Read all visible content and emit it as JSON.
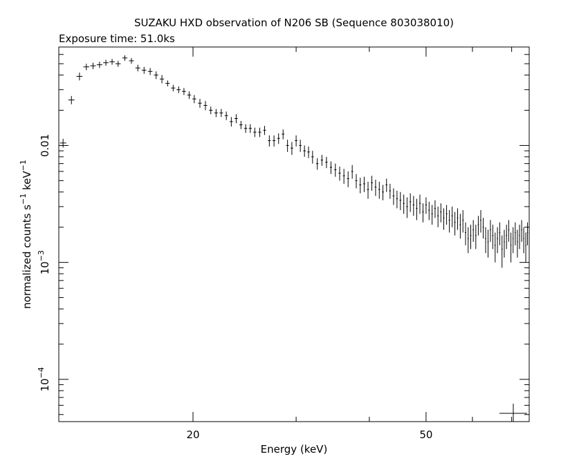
{
  "chart_data": {
    "type": "scatter",
    "title": "SUZAKU HXD observation of N206 SB (Sequence 803038010)",
    "subtitle": "Exposure time: 51.0ks",
    "xlabel": "Energy (keV)",
    "ylabel_main": "normalized counts s",
    "ylabel_exp1": "−1",
    "ylabel_mid": " keV",
    "ylabel_exp2": "−1",
    "x_scale": "log",
    "y_scale": "log",
    "xlim": [
      11.8,
      75.0
    ],
    "ylim": [
      4.35e-05,
      0.0695
    ],
    "x_ticks": [
      {
        "value": 20,
        "label": "20"
      },
      {
        "value": 50,
        "label": "50"
      }
    ],
    "y_ticks": [
      {
        "value": 0.01,
        "label": "0.01"
      },
      {
        "value": 0.001,
        "label": "10",
        "exp": "−3"
      },
      {
        "value": 0.0001,
        "label": "10",
        "exp": "−4"
      }
    ],
    "marker_color": "#000000",
    "grid": false,
    "series": [
      {
        "points": [
          [
            12.0,
            0.0105,
            0.15,
            0.0009
          ],
          [
            12.4,
            0.0245,
            0.15,
            0.002
          ],
          [
            12.8,
            0.039,
            0.15,
            0.003
          ],
          [
            13.15,
            0.047,
            0.15,
            0.003
          ],
          [
            13.5,
            0.048,
            0.15,
            0.003
          ],
          [
            13.85,
            0.049,
            0.15,
            0.003
          ],
          [
            14.2,
            0.051,
            0.15,
            0.003
          ],
          [
            14.55,
            0.052,
            0.15,
            0.003
          ],
          [
            14.9,
            0.05,
            0.15,
            0.003
          ],
          [
            15.3,
            0.056,
            0.15,
            0.003
          ],
          [
            15.7,
            0.053,
            0.15,
            0.003
          ],
          [
            16.1,
            0.046,
            0.15,
            0.003
          ],
          [
            16.5,
            0.044,
            0.15,
            0.003
          ],
          [
            16.9,
            0.043,
            0.15,
            0.003
          ],
          [
            17.3,
            0.04,
            0.15,
            0.003
          ],
          [
            17.7,
            0.037,
            0.15,
            0.003
          ],
          [
            18.1,
            0.034,
            0.15,
            0.002
          ],
          [
            18.5,
            0.031,
            0.15,
            0.002
          ],
          [
            18.9,
            0.03,
            0.15,
            0.002
          ],
          [
            19.3,
            0.029,
            0.15,
            0.002
          ],
          [
            19.7,
            0.027,
            0.15,
            0.002
          ],
          [
            20.1,
            0.025,
            0.15,
            0.002
          ],
          [
            20.55,
            0.023,
            0.15,
            0.002
          ],
          [
            21.0,
            0.022,
            0.15,
            0.002
          ],
          [
            21.45,
            0.02,
            0.15,
            0.0015
          ],
          [
            21.9,
            0.019,
            0.15,
            0.0015
          ],
          [
            22.35,
            0.019,
            0.15,
            0.0015
          ],
          [
            22.8,
            0.018,
            0.15,
            0.0015
          ],
          [
            23.25,
            0.016,
            0.15,
            0.0015
          ],
          [
            23.7,
            0.017,
            0.15,
            0.0015
          ],
          [
            24.15,
            0.015,
            0.15,
            0.0012
          ],
          [
            24.6,
            0.014,
            0.15,
            0.0012
          ],
          [
            25.05,
            0.014,
            0.15,
            0.0012
          ],
          [
            25.5,
            0.013,
            0.15,
            0.0012
          ],
          [
            26.0,
            0.013,
            0.15,
            0.0012
          ],
          [
            26.5,
            0.0135,
            0.15,
            0.0012
          ],
          [
            27.0,
            0.011,
            0.15,
            0.0012
          ],
          [
            27.5,
            0.011,
            0.15,
            0.0012
          ],
          [
            28.0,
            0.0115,
            0.15,
            0.0012
          ],
          [
            28.5,
            0.0125,
            0.15,
            0.0012
          ],
          [
            29.0,
            0.01,
            0.15,
            0.0012
          ],
          [
            29.5,
            0.0095,
            0.15,
            0.0012
          ],
          [
            30.0,
            0.011,
            0.15,
            0.0012
          ],
          [
            30.5,
            0.01,
            0.15,
            0.0012
          ],
          [
            31.0,
            0.009,
            0.15,
            0.001
          ],
          [
            31.5,
            0.0088,
            0.15,
            0.001
          ],
          [
            32.0,
            0.008,
            0.15,
            0.001
          ],
          [
            32.6,
            0.007,
            0.15,
            0.0008
          ],
          [
            33.2,
            0.0075,
            0.15,
            0.0008
          ],
          [
            33.8,
            0.0072,
            0.15,
            0.0008
          ],
          [
            34.4,
            0.0065,
            0.15,
            0.0008
          ],
          [
            35.0,
            0.0062,
            0.15,
            0.0008
          ],
          [
            35.6,
            0.0058,
            0.15,
            0.0008
          ],
          [
            36.2,
            0.0055,
            0.15,
            0.0008
          ],
          [
            36.8,
            0.0052,
            0.15,
            0.0008
          ],
          [
            37.4,
            0.006,
            0.15,
            0.0008
          ],
          [
            38.0,
            0.005,
            0.15,
            0.0007
          ],
          [
            38.6,
            0.0046,
            0.15,
            0.0007
          ],
          [
            39.2,
            0.0047,
            0.15,
            0.0007
          ],
          [
            39.8,
            0.0042,
            0.15,
            0.0007
          ],
          [
            40.4,
            0.0048,
            0.15,
            0.0007
          ],
          [
            41.0,
            0.0044,
            0.15,
            0.0007
          ],
          [
            41.6,
            0.0042,
            0.15,
            0.0007
          ],
          [
            42.2,
            0.004,
            0.15,
            0.0006
          ],
          [
            42.8,
            0.0046,
            0.15,
            0.0006
          ],
          [
            43.4,
            0.0041,
            0.15,
            0.0006
          ],
          [
            44.0,
            0.0037,
            0.15,
            0.0006
          ],
          [
            44.6,
            0.0035,
            0.15,
            0.0006
          ],
          [
            45.2,
            0.0034,
            0.15,
            0.0006
          ],
          [
            45.8,
            0.0032,
            0.15,
            0.0006
          ],
          [
            46.4,
            0.003,
            0.15,
            0.0006
          ],
          [
            47.0,
            0.0033,
            0.15,
            0.0006
          ],
          [
            47.6,
            0.0031,
            0.15,
            0.0006
          ],
          [
            48.2,
            0.0029,
            0.15,
            0.0006
          ],
          [
            48.8,
            0.0032,
            0.15,
            0.0006
          ],
          [
            49.4,
            0.0027,
            0.15,
            0.0005
          ],
          [
            50.0,
            0.0031,
            0.15,
            0.0005
          ],
          [
            50.6,
            0.0028,
            0.15,
            0.0005
          ],
          [
            51.2,
            0.0026,
            0.15,
            0.0005
          ],
          [
            51.8,
            0.0029,
            0.15,
            0.0005
          ],
          [
            52.4,
            0.0025,
            0.15,
            0.0005
          ],
          [
            53.0,
            0.0027,
            0.15,
            0.0005
          ],
          [
            53.6,
            0.0024,
            0.15,
            0.0005
          ],
          [
            54.2,
            0.0026,
            0.15,
            0.0005
          ],
          [
            54.8,
            0.0023,
            0.15,
            0.0005
          ],
          [
            55.4,
            0.0025,
            0.15,
            0.0005
          ],
          [
            56.0,
            0.0022,
            0.15,
            0.0005
          ],
          [
            56.6,
            0.0024,
            0.15,
            0.0005
          ],
          [
            57.2,
            0.0021,
            0.15,
            0.0005
          ],
          [
            57.8,
            0.0023,
            0.15,
            0.0005
          ],
          [
            58.4,
            0.0018,
            0.15,
            0.0004
          ],
          [
            59.0,
            0.0016,
            0.15,
            0.0004
          ],
          [
            59.6,
            0.0017,
            0.15,
            0.0004
          ],
          [
            60.2,
            0.0019,
            0.15,
            0.0004
          ],
          [
            60.8,
            0.0017,
            0.15,
            0.0004
          ],
          [
            61.4,
            0.0021,
            0.15,
            0.0004
          ],
          [
            62.0,
            0.0023,
            0.15,
            0.0005
          ],
          [
            62.6,
            0.002,
            0.15,
            0.0004
          ],
          [
            63.2,
            0.0016,
            0.15,
            0.0004
          ],
          [
            63.8,
            0.0015,
            0.15,
            0.0004
          ],
          [
            64.4,
            0.0019,
            0.15,
            0.0004
          ],
          [
            65.0,
            0.0017,
            0.15,
            0.0004
          ],
          [
            65.6,
            0.0014,
            0.15,
            0.0004
          ],
          [
            66.2,
            0.0016,
            0.15,
            0.0004
          ],
          [
            66.8,
            0.0018,
            0.15,
            0.0004
          ],
          [
            67.4,
            0.0013,
            0.15,
            0.0004
          ],
          [
            68.0,
            0.0015,
            0.15,
            0.0004
          ],
          [
            68.6,
            0.0017,
            0.15,
            0.0004
          ],
          [
            69.2,
            0.0019,
            0.15,
            0.0004
          ],
          [
            69.8,
            0.0014,
            0.15,
            0.0004
          ],
          [
            70.4,
            0.0016,
            0.15,
            0.0004
          ],
          [
            71.0,
            0.0018,
            0.15,
            0.0004
          ],
          [
            71.6,
            0.0015,
            0.15,
            0.0004
          ],
          [
            72.2,
            0.0017,
            0.15,
            0.0004
          ],
          [
            72.8,
            0.0019,
            0.15,
            0.0004
          ],
          [
            73.4,
            0.0016,
            0.15,
            0.0004
          ],
          [
            74.0,
            0.0014,
            0.15,
            0.0004
          ],
          [
            74.5,
            0.0018,
            0.15,
            0.0004
          ]
        ]
      }
    ]
  }
}
